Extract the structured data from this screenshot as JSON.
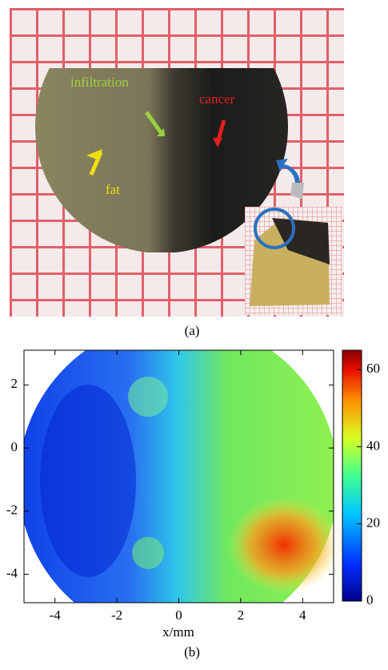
{
  "panel_a": {
    "labels": {
      "infiltration": "infiltration",
      "cancer": "cancer",
      "fat": "fat"
    },
    "caption": "(a)"
  },
  "chart_data": {
    "type": "heatmap",
    "xlabel": "x/mm",
    "caption": "(b)",
    "xlim": [
      -5,
      5
    ],
    "xticks": [
      -4,
      -2,
      0,
      2,
      4
    ],
    "ylim": [
      -4.9,
      3.1
    ],
    "yticks": [
      -4,
      -2,
      0,
      2
    ],
    "zlim": [
      0,
      65
    ],
    "colorbar_ticks": [
      0,
      20,
      40,
      60
    ]
  }
}
